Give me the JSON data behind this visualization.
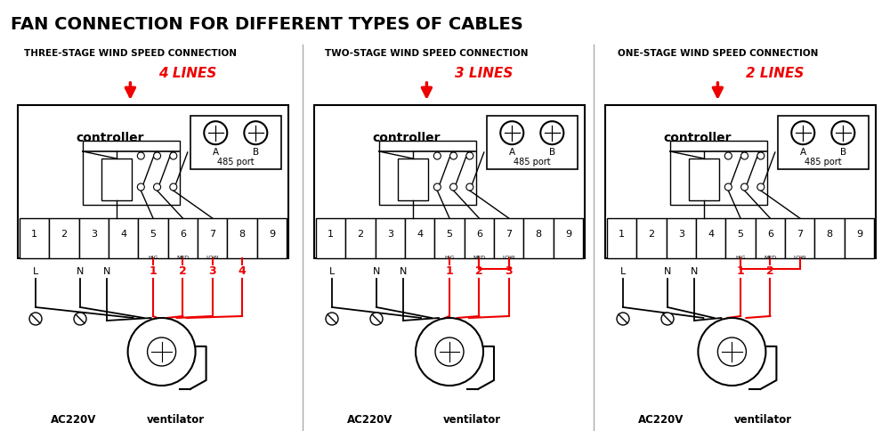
{
  "title": "FAN CONNECTION FOR DIFFERENT TYPES OF CABLES",
  "bg_color": "#ffffff",
  "black": "#000000",
  "red": "#ee0000",
  "panels": [
    {
      "subtitle": "THREE-STAGE WIND SPEED CONNECTION",
      "lines_label": "4 LINES",
      "n_wires": 4,
      "wire_labels": [
        "1",
        "2",
        "3",
        "4"
      ],
      "n_switches": 3,
      "has_bridge": false,
      "bridge_terms": []
    },
    {
      "subtitle": "TWO-STAGE WIND SPEED CONNECTION",
      "lines_label": "3 LINES",
      "n_wires": 3,
      "wire_labels": [
        "1",
        "2",
        "3"
      ],
      "n_switches": 3,
      "has_bridge": true,
      "bridge_terms": [
        6,
        7
      ]
    },
    {
      "subtitle": "ONE-STAGE WIND SPEED CONNECTION",
      "lines_label": "2 LINES",
      "n_wires": 2,
      "wire_labels": [
        "1",
        "2"
      ],
      "n_switches": 3,
      "has_bridge": true,
      "bridge_terms": [
        5,
        6,
        7
      ]
    }
  ]
}
